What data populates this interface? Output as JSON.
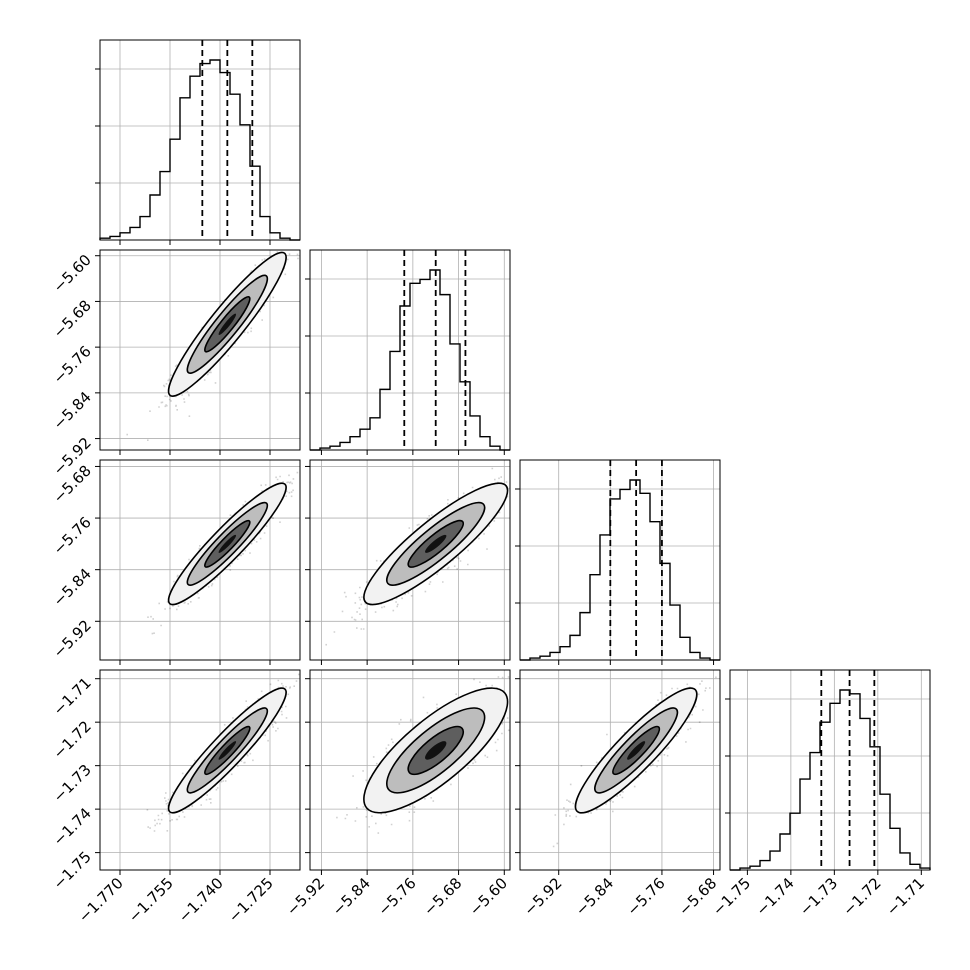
{
  "chart_data": {
    "type": "corner",
    "grid": true,
    "n_params": 4,
    "params": [
      {
        "range": [
          -1.776,
          -1.716
        ],
        "ticks": [
          -1.77,
          -1.755,
          -1.74,
          -1.725
        ],
        "tick_labels": [
          "−1.770",
          "−1.755",
          "−1.740",
          "−1.725"
        ],
        "quantiles": [
          -1.7453,
          -1.7378,
          -1.7303
        ],
        "hist": [
          0.01,
          0.02,
          0.04,
          0.07,
          0.13,
          0.25,
          0.38,
          0.56,
          0.79,
          0.91,
          0.98,
          1.0,
          0.93,
          0.81,
          0.64,
          0.41,
          0.13,
          0.04,
          0.01,
          0.0
        ]
      },
      {
        "range": [
          -5.94,
          -5.59
        ],
        "ticks": [
          -5.92,
          -5.84,
          -5.76,
          -5.68,
          -5.6
        ],
        "tick_labels": [
          "−5.92",
          "−5.84",
          "−5.76",
          "−5.68",
          "−5.60"
        ],
        "quantiles": [
          -5.775,
          -5.72,
          -5.668
        ],
        "hist": [
          0.0,
          0.01,
          0.02,
          0.04,
          0.07,
          0.11,
          0.17,
          0.32,
          0.52,
          0.76,
          0.88,
          0.9,
          0.95,
          0.82,
          0.56,
          0.36,
          0.18,
          0.07,
          0.02,
          0.0
        ]
      },
      {
        "range": [
          -5.98,
          -5.67
        ],
        "ticks": [
          -5.92,
          -5.84,
          -5.76,
          -5.68
        ],
        "tick_labels": [
          "−5.92",
          "−5.84",
          "−5.76",
          "−5.68"
        ],
        "quantiles": [
          -5.84,
          -5.8,
          -5.76
        ],
        "hist": [
          0.0,
          0.01,
          0.02,
          0.04,
          0.07,
          0.13,
          0.25,
          0.45,
          0.66,
          0.85,
          0.9,
          0.95,
          0.88,
          0.73,
          0.51,
          0.29,
          0.12,
          0.04,
          0.01,
          0.0
        ]
      },
      {
        "range": [
          -1.754,
          -1.708
        ],
        "ticks": [
          -1.75,
          -1.74,
          -1.73,
          -1.72,
          -1.71
        ],
        "tick_labels": [
          "−1.75",
          "−1.74",
          "−1.73",
          "−1.72",
          "−1.71"
        ],
        "quantiles": [
          -1.733,
          -1.7265,
          -1.7208
        ],
        "hist": [
          0.0,
          0.01,
          0.02,
          0.05,
          0.1,
          0.19,
          0.3,
          0.48,
          0.62,
          0.78,
          0.88,
          0.95,
          0.93,
          0.8,
          0.65,
          0.4,
          0.22,
          0.09,
          0.03,
          0.01
        ]
      }
    ],
    "panels_2d": [
      {
        "x": 0,
        "y": 1,
        "correlation": 0.93
      },
      {
        "x": 0,
        "y": 2,
        "correlation": 0.93
      },
      {
        "x": 1,
        "y": 2,
        "correlation": 0.88
      },
      {
        "x": 0,
        "y": 3,
        "correlation": 0.93
      },
      {
        "x": 1,
        "y": 3,
        "correlation": 0.78
      },
      {
        "x": 2,
        "y": 3,
        "correlation": 0.9
      }
    ]
  }
}
